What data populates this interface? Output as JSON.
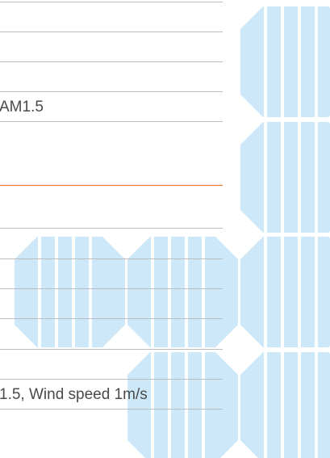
{
  "rows": {
    "condition_1": "AM1.5",
    "condition_2": "1.5, Wind speed 1m/s"
  }
}
